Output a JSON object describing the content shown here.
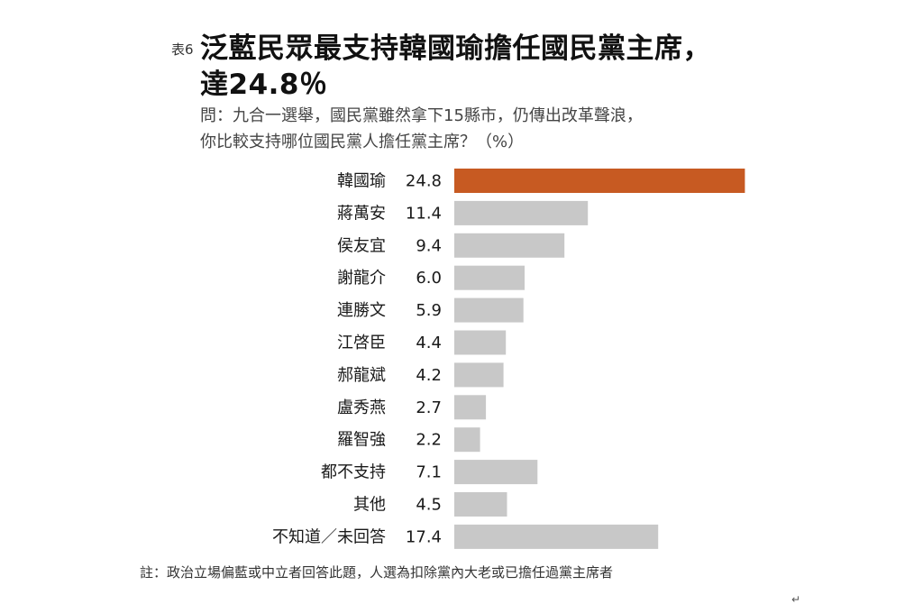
{
  "header": {
    "table_tag": "表6",
    "title_line1": "泛藍民眾最支持韓國瑜擔任國民黨主席，",
    "title_line2": "達24.8％",
    "question_line1": "問：九合一選舉，國民黨雖然拿下15縣市，仍傳出改革聲浪，",
    "question_line2": "你比較支持哪位國民黨人擔任黨主席？（%）"
  },
  "chart_data": {
    "type": "bar",
    "orientation": "horizontal",
    "categories": [
      "韓國瑜",
      "蔣萬安",
      "侯友宜",
      "謝龍介",
      "連勝文",
      "江啓臣",
      "郝龍斌",
      "盧秀燕",
      "羅智強",
      "都不支持",
      "其他",
      "不知道／未回答"
    ],
    "values": [
      24.8,
      11.4,
      9.4,
      6.0,
      5.9,
      4.4,
      4.2,
      2.7,
      2.2,
      7.1,
      4.5,
      17.4
    ],
    "value_labels": [
      "24.8",
      "11.4",
      "9.4",
      "6.0",
      "5.9",
      "4.4",
      "4.2",
      "2.7",
      "2.2",
      "7.1",
      "4.5",
      "17.4"
    ],
    "highlight_index": 0,
    "highlight_color": "#c75a22",
    "bar_color": "#c8c8c8",
    "xlim": [
      0,
      25
    ],
    "grid": false,
    "legend": "none"
  },
  "footer": {
    "note": "註：政治立場偏藍或中立者回答此題，人選為扣除黨內大老或已擔任過黨主席者",
    "return_mark": "↵"
  }
}
